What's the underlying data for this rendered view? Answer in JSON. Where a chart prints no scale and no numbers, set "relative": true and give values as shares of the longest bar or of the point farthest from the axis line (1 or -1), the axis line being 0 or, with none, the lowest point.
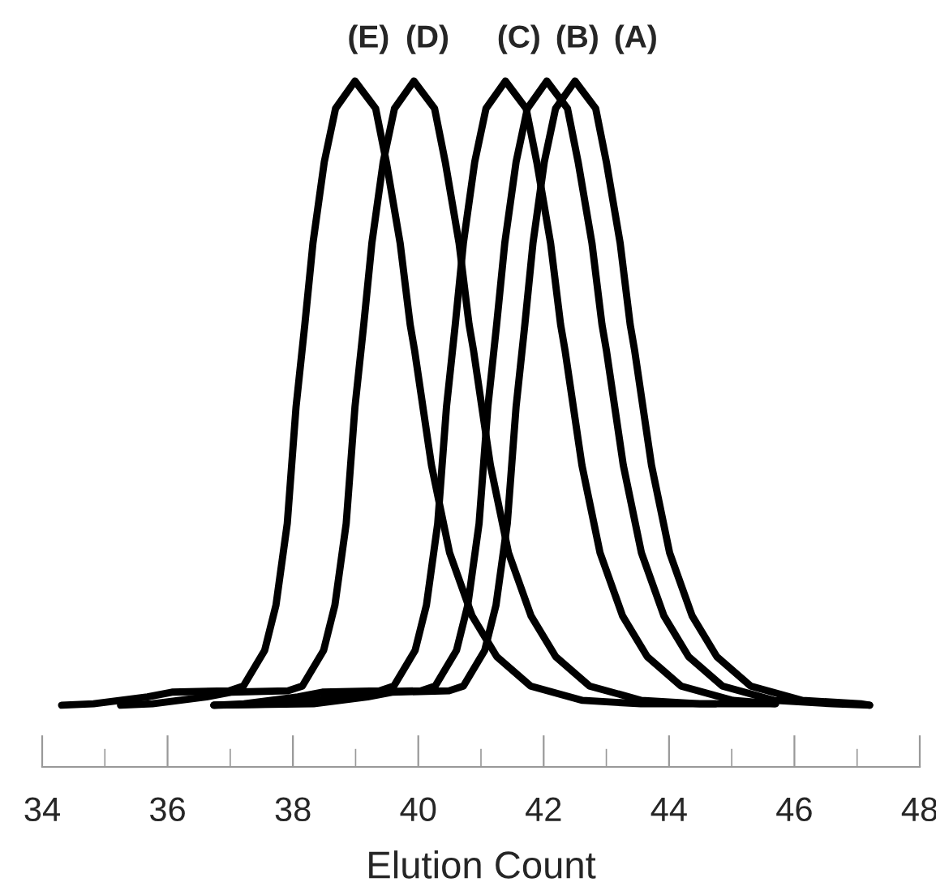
{
  "chart_data": {
    "type": "line",
    "relative": true,
    "xlabel": "Elution Count",
    "xlim": [
      34,
      48
    ],
    "xticks": [
      34,
      {
        "value": 35,
        "label": null
      },
      36,
      {
        "value": 37,
        "label": null
      },
      38,
      {
        "value": 39,
        "label": null
      },
      40,
      {
        "value": 41,
        "label": null
      },
      42,
      {
        "value": 43,
        "label": null
      },
      44,
      {
        "value": 45,
        "label": null
      },
      46,
      {
        "value": 47,
        "label": null
      },
      48
    ],
    "grid": false,
    "legend": false,
    "marker": "none",
    "line_style": "solid",
    "series": [
      {
        "name": "(A)",
        "color": "#000000",
        "x": [
          36.74,
          38.33,
          39.19,
          39.58,
          40.49,
          40.72,
          41.06,
          41.24,
          41.42,
          41.56,
          41.7,
          41.83,
          42.01,
          42.19,
          42.5,
          42.83,
          43.0,
          43.22,
          43.38,
          43.45,
          43.72,
          44.01,
          44.37,
          44.76,
          45.3,
          46.13,
          47.06,
          47.2
        ],
        "values": [
          0.09,
          0.092,
          0.102,
          0.109,
          0.111,
          0.118,
          0.17,
          0.236,
          0.355,
          0.525,
          0.645,
          0.764,
          0.882,
          0.96,
          1.0,
          0.96,
          0.882,
          0.764,
          0.645,
          0.608,
          0.44,
          0.312,
          0.22,
          0.161,
          0.118,
          0.097,
          0.092,
          0.09
        ]
      },
      {
        "name": "(B)",
        "color": "#000000",
        "x": [
          36.74,
          37.88,
          38.74,
          39.13,
          40.04,
          40.27,
          40.61,
          40.79,
          40.97,
          41.11,
          41.25,
          41.38,
          41.56,
          41.74,
          42.05,
          42.38,
          42.55,
          42.77,
          42.93,
          43.0,
          43.27,
          43.56,
          43.92,
          44.31,
          44.85,
          45.68,
          46.61,
          47.2
        ],
        "values": [
          0.09,
          0.092,
          0.102,
          0.109,
          0.111,
          0.118,
          0.17,
          0.236,
          0.355,
          0.525,
          0.645,
          0.764,
          0.882,
          0.96,
          1.0,
          0.96,
          0.882,
          0.764,
          0.645,
          0.608,
          0.44,
          0.312,
          0.22,
          0.161,
          0.118,
          0.097,
          0.092,
          0.09
        ]
      },
      {
        "name": "(C)",
        "color": "#000000",
        "x": [
          36.74,
          37.22,
          38.08,
          38.47,
          39.38,
          39.61,
          39.95,
          40.13,
          40.31,
          40.45,
          40.59,
          40.72,
          40.9,
          41.08,
          41.39,
          41.72,
          41.89,
          42.11,
          42.27,
          42.34,
          42.61,
          42.9,
          43.26,
          43.65,
          44.19,
          45.02,
          45.7
        ],
        "values": [
          0.09,
          0.092,
          0.102,
          0.109,
          0.111,
          0.118,
          0.17,
          0.236,
          0.355,
          0.525,
          0.645,
          0.764,
          0.882,
          0.96,
          1.0,
          0.96,
          0.882,
          0.764,
          0.645,
          0.608,
          0.44,
          0.312,
          0.22,
          0.161,
          0.118,
          0.097,
          0.092
        ]
      },
      {
        "name": "(D)",
        "color": "#000000",
        "x": [
          35.25,
          35.76,
          36.62,
          37.01,
          37.92,
          38.15,
          38.49,
          38.67,
          38.85,
          38.99,
          39.13,
          39.26,
          39.44,
          39.62,
          39.93,
          40.26,
          40.43,
          40.65,
          40.81,
          40.88,
          41.15,
          41.44,
          41.8,
          42.19,
          42.73,
          43.56,
          44.49,
          45.68
        ],
        "values": [
          0.09,
          0.092,
          0.102,
          0.109,
          0.111,
          0.118,
          0.17,
          0.236,
          0.355,
          0.525,
          0.645,
          0.764,
          0.882,
          0.96,
          1.0,
          0.96,
          0.882,
          0.764,
          0.645,
          0.608,
          0.44,
          0.312,
          0.22,
          0.161,
          0.118,
          0.097,
          0.092,
          0.092
        ]
      },
      {
        "name": "(E)",
        "color": "#000000",
        "x": [
          34.31,
          34.82,
          35.68,
          36.07,
          36.98,
          37.21,
          37.55,
          37.73,
          37.91,
          38.05,
          38.19,
          38.32,
          38.5,
          38.68,
          38.99,
          39.32,
          39.49,
          39.71,
          39.87,
          39.94,
          40.21,
          40.5,
          40.86,
          41.25,
          41.79,
          42.62,
          43.55,
          44.74
        ],
        "values": [
          0.09,
          0.092,
          0.102,
          0.109,
          0.111,
          0.118,
          0.17,
          0.236,
          0.355,
          0.525,
          0.645,
          0.764,
          0.882,
          0.96,
          1.0,
          0.96,
          0.882,
          0.764,
          0.645,
          0.608,
          0.44,
          0.312,
          0.22,
          0.161,
          0.118,
          0.097,
          0.092,
          0.092
        ]
      }
    ]
  }
}
